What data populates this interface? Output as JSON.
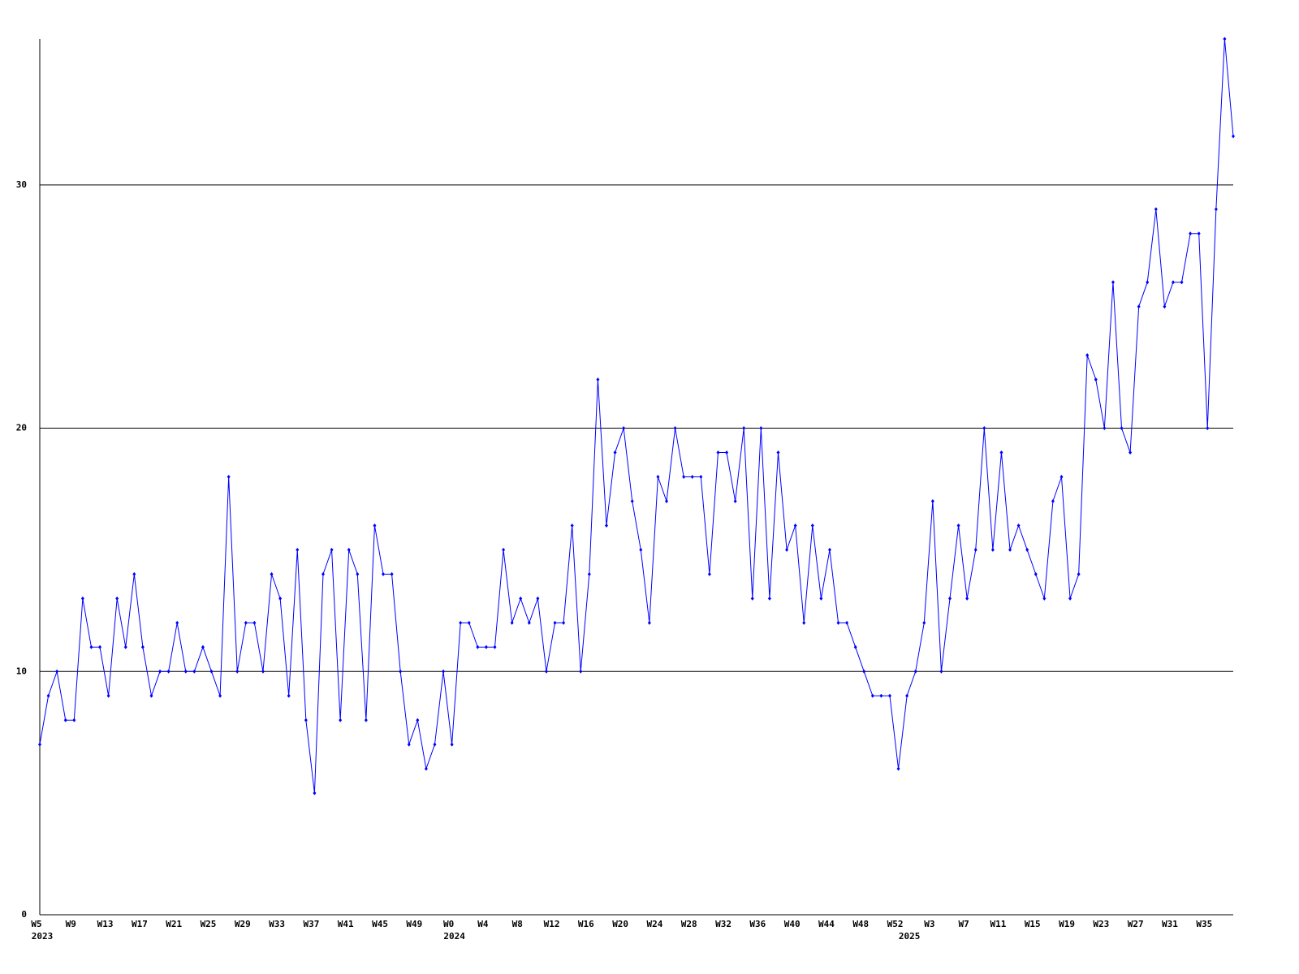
{
  "chart_data": {
    "type": "line",
    "color": "#0000ff",
    "grid": true,
    "ylim": [
      0,
      36
    ],
    "yticks": [
      0,
      10,
      20,
      30
    ],
    "categories": [
      "W5",
      null,
      null,
      null,
      "W9",
      null,
      null,
      null,
      "W13",
      null,
      null,
      null,
      "W17",
      null,
      null,
      null,
      "W21",
      null,
      null,
      null,
      "W25",
      null,
      null,
      null,
      "W29",
      null,
      null,
      null,
      "W33",
      null,
      null,
      null,
      "W37",
      null,
      null,
      null,
      "W41",
      null,
      null,
      null,
      "W45",
      null,
      null,
      null,
      "W49",
      null,
      null,
      null,
      "W0",
      null,
      null,
      null,
      "W4",
      null,
      null,
      null,
      "W8",
      null,
      null,
      null,
      "W12",
      null,
      null,
      null,
      "W16",
      null,
      null,
      null,
      "W20",
      null,
      null,
      null,
      "W24",
      null,
      null,
      null,
      "W28",
      null,
      null,
      null,
      "W32",
      null,
      null,
      null,
      "W36",
      null,
      null,
      null,
      "W40",
      null,
      null,
      null,
      "W44",
      null,
      null,
      null,
      "W48",
      null,
      null,
      null,
      "W52",
      null,
      null,
      null,
      "W3",
      null,
      null,
      null,
      "W7",
      null,
      null,
      null,
      "W11",
      null,
      null,
      null,
      "W15",
      null,
      null,
      null,
      "W19",
      null,
      null,
      null,
      "W23",
      null,
      null,
      null,
      "W27",
      null,
      null,
      null,
      "W31",
      null,
      null,
      null,
      "W35",
      null,
      null,
      null
    ],
    "groups": [
      {
        "label": "2023",
        "start": 0
      },
      {
        "label": "2024",
        "start": 48
      },
      {
        "label": "2025",
        "start": 101
      }
    ],
    "values": [
      7,
      9,
      10,
      8,
      8,
      13,
      11,
      11,
      9,
      13,
      11,
      14,
      11,
      9,
      10,
      10,
      12,
      10,
      10,
      11,
      10,
      9,
      18,
      10,
      12,
      12,
      10,
      14,
      13,
      9,
      15,
      8,
      5,
      14,
      15,
      8,
      15,
      14,
      8,
      16,
      14,
      14,
      10,
      7,
      8,
      6,
      7,
      10,
      7,
      12,
      12,
      11,
      11,
      11,
      15,
      12,
      13,
      12,
      13,
      10,
      12,
      12,
      16,
      10,
      14,
      22,
      16,
      19,
      20,
      17,
      15,
      12,
      18,
      17,
      20,
      18,
      18,
      18,
      14,
      19,
      19,
      17,
      20,
      13,
      20,
      13,
      19,
      15,
      16,
      12,
      16,
      13,
      15,
      12,
      12,
      11,
      10,
      9,
      9,
      9,
      6,
      9,
      10,
      12,
      17,
      10,
      13,
      16,
      13,
      15,
      20,
      15,
      19,
      15,
      16,
      15,
      14,
      13,
      17,
      18,
      13,
      14,
      23,
      22,
      20,
      26,
      20,
      19,
      25,
      26,
      29,
      25,
      26,
      26,
      28,
      28,
      20,
      29,
      36,
      32
    ]
  }
}
